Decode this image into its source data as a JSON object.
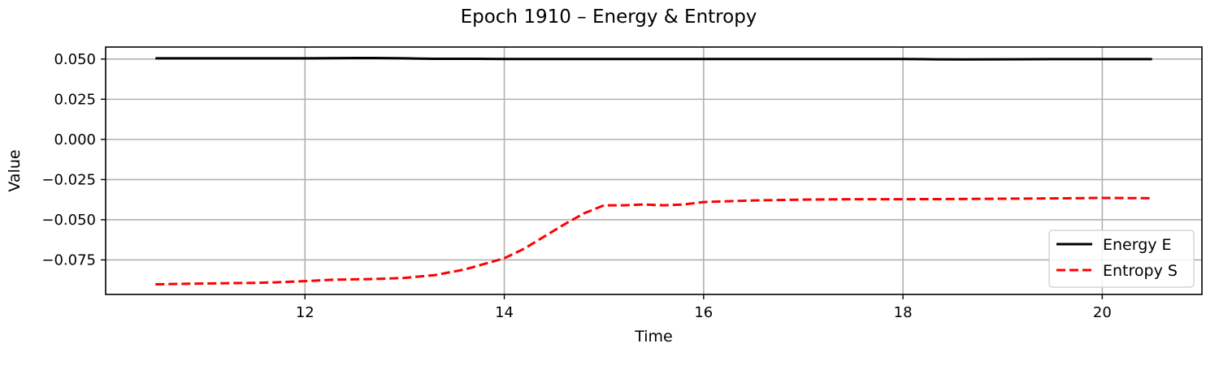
{
  "chart_data": {
    "type": "line",
    "title": "Epoch 1910 – Energy & Entropy",
    "xlabel": "Time",
    "ylabel": "Value",
    "xlim": [
      10.0,
      21.0
    ],
    "ylim": [
      -0.0965,
      0.0575
    ],
    "xticks": [
      12,
      14,
      16,
      18,
      20
    ],
    "yticks": [
      0.05,
      0.025,
      0.0,
      -0.025,
      -0.05,
      -0.075
    ],
    "ytick_labels": [
      "0.050",
      "0.025",
      "0.000",
      "−0.025",
      "−0.050",
      "−0.075"
    ],
    "grid": true,
    "legend_position": "lower-right",
    "series": [
      {
        "name": "Energy E",
        "color": "#000000",
        "style": "solid",
        "x": [
          10.5,
          11.0,
          11.5,
          12.0,
          12.5,
          12.7,
          13.0,
          13.3,
          13.7,
          14.0,
          14.5,
          15.0,
          15.5,
          16.0,
          16.5,
          17.0,
          17.5,
          18.0,
          18.3,
          18.6,
          19.0,
          19.5,
          20.0,
          20.5
        ],
        "y": [
          0.0505,
          0.0505,
          0.0505,
          0.0505,
          0.0507,
          0.0507,
          0.0505,
          0.0502,
          0.0502,
          0.0501,
          0.0501,
          0.0501,
          0.0501,
          0.0501,
          0.0501,
          0.0501,
          0.0501,
          0.0501,
          0.0499,
          0.0498,
          0.0499,
          0.05,
          0.05,
          0.05
        ]
      },
      {
        "name": "Entropy S",
        "color": "#ff0000",
        "style": "dashed",
        "x": [
          10.5,
          11.0,
          11.5,
          11.7,
          12.0,
          12.3,
          12.7,
          13.0,
          13.3,
          13.6,
          14.0,
          14.2,
          14.4,
          14.6,
          14.8,
          15.0,
          15.2,
          15.4,
          15.6,
          15.8,
          16.0,
          16.5,
          17.0,
          17.5,
          18.0,
          18.5,
          19.0,
          19.5,
          20.0,
          20.5
        ],
        "y": [
          -0.0902,
          -0.0897,
          -0.0893,
          -0.089,
          -0.0882,
          -0.0873,
          -0.0869,
          -0.0862,
          -0.0845,
          -0.081,
          -0.074,
          -0.068,
          -0.0605,
          -0.053,
          -0.046,
          -0.041,
          -0.041,
          -0.0405,
          -0.041,
          -0.0405,
          -0.039,
          -0.038,
          -0.0375,
          -0.0372,
          -0.0372,
          -0.0371,
          -0.0369,
          -0.0367,
          -0.0364,
          -0.0366
        ]
      }
    ]
  }
}
